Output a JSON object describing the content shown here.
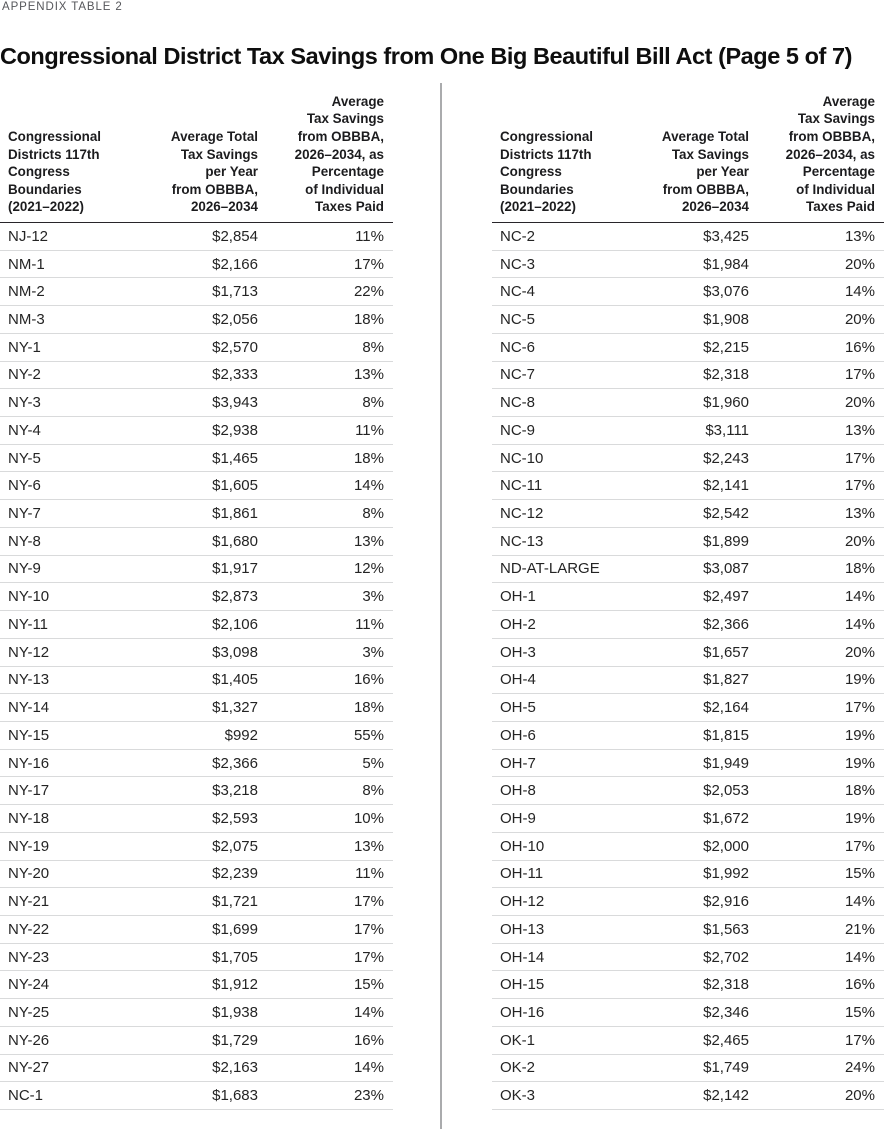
{
  "page": {
    "eyebrow": "APPENDIX TABLE 2",
    "title": "Congressional District Tax Savings from One Big Beautiful Bill Act (Page 5 of 7)"
  },
  "colors": {
    "eyebrow_gray": "#55565a",
    "title_black": "#0e0e0e",
    "header_rule": "#28252a",
    "row_rule": "#d9dadb",
    "divider_gray": "#aaabad"
  },
  "columns": {
    "district": "Congressional\nDistricts 117th\nCongress\nBoundaries\n(2021–2022)",
    "savings": "Average Total\nTax Savings\nper Year\nfrom OBBBA,\n2026–2034",
    "pct": "Average\nTax Savings\nfrom OBBBA,\n2026–2034, as\nPercentage\nof Individual\nTaxes Paid"
  },
  "tables": [
    {
      "id": "left",
      "rows": [
        [
          "NJ-12",
          "$2,854",
          "11%"
        ],
        [
          "NM-1",
          "$2,166",
          "17%"
        ],
        [
          "NM-2",
          "$1,713",
          "22%"
        ],
        [
          "NM-3",
          "$2,056",
          "18%"
        ],
        [
          "NY-1",
          "$2,570",
          "8%"
        ],
        [
          "NY-2",
          "$2,333",
          "13%"
        ],
        [
          "NY-3",
          "$3,943",
          "8%"
        ],
        [
          "NY-4",
          "$2,938",
          "11%"
        ],
        [
          "NY-5",
          "$1,465",
          "18%"
        ],
        [
          "NY-6",
          "$1,605",
          "14%"
        ],
        [
          "NY-7",
          "$1,861",
          "8%"
        ],
        [
          "NY-8",
          "$1,680",
          "13%"
        ],
        [
          "NY-9",
          "$1,917",
          "12%"
        ],
        [
          "NY-10",
          "$2,873",
          "3%"
        ],
        [
          "NY-11",
          "$2,106",
          "11%"
        ],
        [
          "NY-12",
          "$3,098",
          "3%"
        ],
        [
          "NY-13",
          "$1,405",
          "16%"
        ],
        [
          "NY-14",
          "$1,327",
          "18%"
        ],
        [
          "NY-15",
          "$992",
          "55%"
        ],
        [
          "NY-16",
          "$2,366",
          "5%"
        ],
        [
          "NY-17",
          "$3,218",
          "8%"
        ],
        [
          "NY-18",
          "$2,593",
          "10%"
        ],
        [
          "NY-19",
          "$2,075",
          "13%"
        ],
        [
          "NY-20",
          "$2,239",
          "11%"
        ],
        [
          "NY-21",
          "$1,721",
          "17%"
        ],
        [
          "NY-22",
          "$1,699",
          "17%"
        ],
        [
          "NY-23",
          "$1,705",
          "17%"
        ],
        [
          "NY-24",
          "$1,912",
          "15%"
        ],
        [
          "NY-25",
          "$1,938",
          "14%"
        ],
        [
          "NY-26",
          "$1,729",
          "16%"
        ],
        [
          "NY-27",
          "$2,163",
          "14%"
        ],
        [
          "NC-1",
          "$1,683",
          "23%"
        ]
      ]
    },
    {
      "id": "right",
      "rows": [
        [
          "NC-2",
          "$3,425",
          "13%"
        ],
        [
          "NC-3",
          "$1,984",
          "20%"
        ],
        [
          "NC-4",
          "$3,076",
          "14%"
        ],
        [
          "NC-5",
          "$1,908",
          "20%"
        ],
        [
          "NC-6",
          "$2,215",
          "16%"
        ],
        [
          "NC-7",
          "$2,318",
          "17%"
        ],
        [
          "NC-8",
          "$1,960",
          "20%"
        ],
        [
          "NC-9",
          "$3,111",
          "13%"
        ],
        [
          "NC-10",
          "$2,243",
          "17%"
        ],
        [
          "NC-11",
          "$2,141",
          "17%"
        ],
        [
          "NC-12",
          "$2,542",
          "13%"
        ],
        [
          "NC-13",
          "$1,899",
          "20%"
        ],
        [
          "ND-AT-LARGE",
          "$3,087",
          "18%"
        ],
        [
          "OH-1",
          "$2,497",
          "14%"
        ],
        [
          "OH-2",
          "$2,366",
          "14%"
        ],
        [
          "OH-3",
          "$1,657",
          "20%"
        ],
        [
          "OH-4",
          "$1,827",
          "19%"
        ],
        [
          "OH-5",
          "$2,164",
          "17%"
        ],
        [
          "OH-6",
          "$1,815",
          "19%"
        ],
        [
          "OH-7",
          "$1,949",
          "19%"
        ],
        [
          "OH-8",
          "$2,053",
          "18%"
        ],
        [
          "OH-9",
          "$1,672",
          "19%"
        ],
        [
          "OH-10",
          "$2,000",
          "17%"
        ],
        [
          "OH-11",
          "$1,992",
          "15%"
        ],
        [
          "OH-12",
          "$2,916",
          "14%"
        ],
        [
          "OH-13",
          "$1,563",
          "21%"
        ],
        [
          "OH-14",
          "$2,702",
          "14%"
        ],
        [
          "OH-15",
          "$2,318",
          "16%"
        ],
        [
          "OH-16",
          "$2,346",
          "15%"
        ],
        [
          "OK-1",
          "$2,465",
          "17%"
        ],
        [
          "OK-2",
          "$1,749",
          "24%"
        ],
        [
          "OK-3",
          "$2,142",
          "20%"
        ]
      ]
    }
  ]
}
